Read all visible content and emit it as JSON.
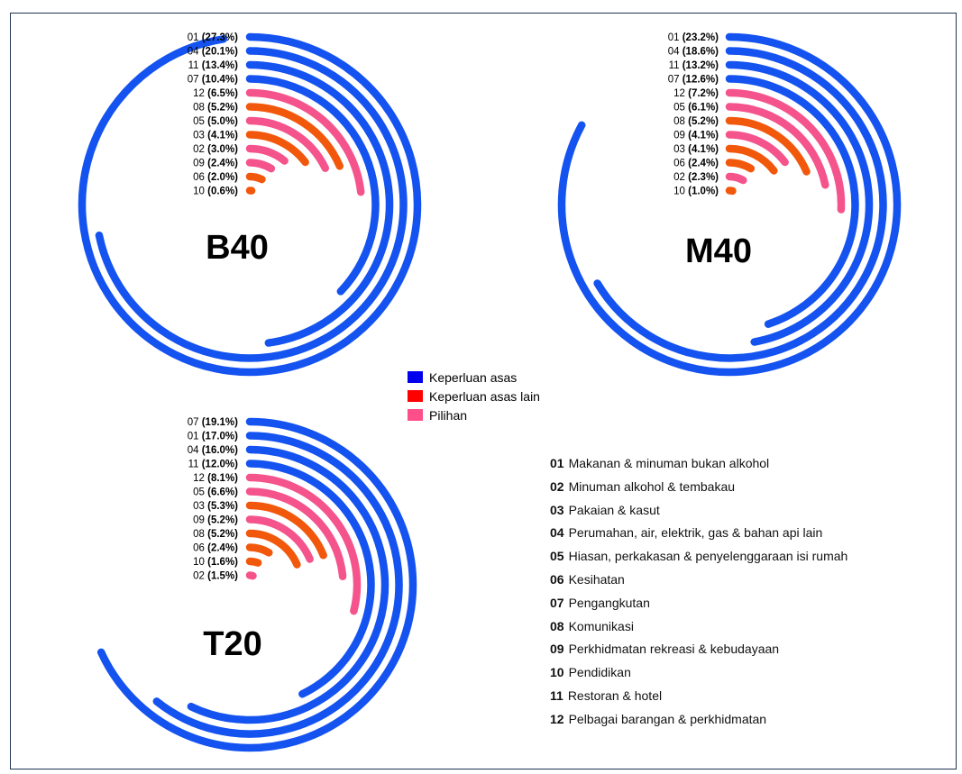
{
  "colors": {
    "basic": "#1453f0",
    "other_basic": "#f2580c",
    "optional": "#f5538b"
  },
  "legend": [
    {
      "label": "Keperluan asas",
      "swatch": "#0000ee"
    },
    {
      "label": "Keperluan asas lain",
      "swatch": "#ff0000"
    },
    {
      "label": "Pilihan",
      "swatch": "#ff4f8a"
    }
  ],
  "categories": [
    {
      "code": "01",
      "name": "Makanan  &  minuman  bukan  alkohol"
    },
    {
      "code": "02",
      "name": "Minuman  alkohol  &  tembakau"
    },
    {
      "code": "03",
      "name": "Pakaian  &  kasut"
    },
    {
      "code": "04",
      "name": "Perumahan,  air,  elektrik,  gas  &  bahan  api  lain"
    },
    {
      "code": "05",
      "name": "Hiasan,  perkakasan  &  penyelenggaraan  isi  rumah"
    },
    {
      "code": "06",
      "name": "Kesihatan"
    },
    {
      "code": "07",
      "name": "Pengangkutan"
    },
    {
      "code": "08",
      "name": "Komunikasi"
    },
    {
      "code": "09",
      "name": "Perkhidmatan  rekreasi  &  kebudayaan"
    },
    {
      "code": "10",
      "name": "Pendidikan"
    },
    {
      "code": "11",
      "name": "Restoran  &  hotel"
    },
    {
      "code": "12",
      "name": "Pelbagai  barangan  &  perkhidmatan"
    }
  ],
  "chart_data": [
    {
      "type": "radial-bar",
      "title": "B40",
      "series": [
        {
          "code": "01",
          "value": 27.3,
          "label": "(27.3%)",
          "group": "basic"
        },
        {
          "code": "04",
          "value": 20.1,
          "label": "(20.1%)",
          "group": "basic"
        },
        {
          "code": "11",
          "value": 13.4,
          "label": "(13.4%)",
          "group": "basic"
        },
        {
          "code": "07",
          "value": 10.4,
          "label": "(10.4%)",
          "group": "basic"
        },
        {
          "code": "12",
          "value": 6.5,
          "label": "(6.5%)",
          "group": "optional"
        },
        {
          "code": "08",
          "value": 5.2,
          "label": "(5.2%)",
          "group": "other_basic"
        },
        {
          "code": "05",
          "value": 5.0,
          "label": "(5.0%)",
          "group": "optional"
        },
        {
          "code": "03",
          "value": 4.1,
          "label": "(4.1%)",
          "group": "other_basic"
        },
        {
          "code": "02",
          "value": 3.0,
          "label": "(3.0%)",
          "group": "optional"
        },
        {
          "code": "09",
          "value": 2.4,
          "label": "(2.4%)",
          "group": "optional"
        },
        {
          "code": "06",
          "value": 2.0,
          "label": "(2.0%)",
          "group": "other_basic"
        },
        {
          "code": "10",
          "value": 0.6,
          "label": "(0.6%)",
          "group": "other_basic"
        }
      ]
    },
    {
      "type": "radial-bar",
      "title": "M40",
      "series": [
        {
          "code": "01",
          "value": 23.2,
          "label": "(23.2%)",
          "group": "basic"
        },
        {
          "code": "04",
          "value": 18.6,
          "label": "(18.6%)",
          "group": "basic"
        },
        {
          "code": "11",
          "value": 13.2,
          "label": "(13.2%)",
          "group": "basic"
        },
        {
          "code": "07",
          "value": 12.6,
          "label": "(12.6%)",
          "group": "basic"
        },
        {
          "code": "12",
          "value": 7.2,
          "label": "(7.2%)",
          "group": "optional"
        },
        {
          "code": "05",
          "value": 6.1,
          "label": "(6.1%)",
          "group": "optional"
        },
        {
          "code": "08",
          "value": 5.2,
          "label": "(5.2%)",
          "group": "other_basic"
        },
        {
          "code": "09",
          "value": 4.1,
          "label": "(4.1%)",
          "group": "optional"
        },
        {
          "code": "03",
          "value": 4.1,
          "label": "(4.1%)",
          "group": "other_basic"
        },
        {
          "code": "06",
          "value": 2.4,
          "label": "(2.4%)",
          "group": "other_basic"
        },
        {
          "code": "02",
          "value": 2.3,
          "label": "(2.3%)",
          "group": "optional"
        },
        {
          "code": "10",
          "value": 1.0,
          "label": "(1.0%)",
          "group": "other_basic"
        }
      ]
    },
    {
      "type": "radial-bar",
      "title": "T20",
      "series": [
        {
          "code": "07",
          "value": 19.1,
          "label": "(19.1%)",
          "group": "basic"
        },
        {
          "code": "01",
          "value": 17.0,
          "label": "(17.0%)",
          "group": "basic"
        },
        {
          "code": "04",
          "value": 16.0,
          "label": "(16.0%)",
          "group": "basic"
        },
        {
          "code": "11",
          "value": 12.0,
          "label": "(12.0%)",
          "group": "basic"
        },
        {
          "code": "12",
          "value": 8.1,
          "label": "(8.1%)",
          "group": "optional"
        },
        {
          "code": "05",
          "value": 6.6,
          "label": "(6.6%)",
          "group": "optional"
        },
        {
          "code": "03",
          "value": 5.3,
          "label": "(5.3%)",
          "group": "other_basic"
        },
        {
          "code": "09",
          "value": 5.2,
          "label": "(5.2%)",
          "group": "optional"
        },
        {
          "code": "08",
          "value": 5.2,
          "label": "(5.2%)",
          "group": "other_basic"
        },
        {
          "code": "06",
          "value": 2.4,
          "label": "(2.4%)",
          "group": "other_basic"
        },
        {
          "code": "10",
          "value": 1.6,
          "label": "(1.6%)",
          "group": "other_basic"
        },
        {
          "code": "02",
          "value": 1.5,
          "label": "(1.5%)",
          "group": "optional"
        }
      ]
    }
  ]
}
